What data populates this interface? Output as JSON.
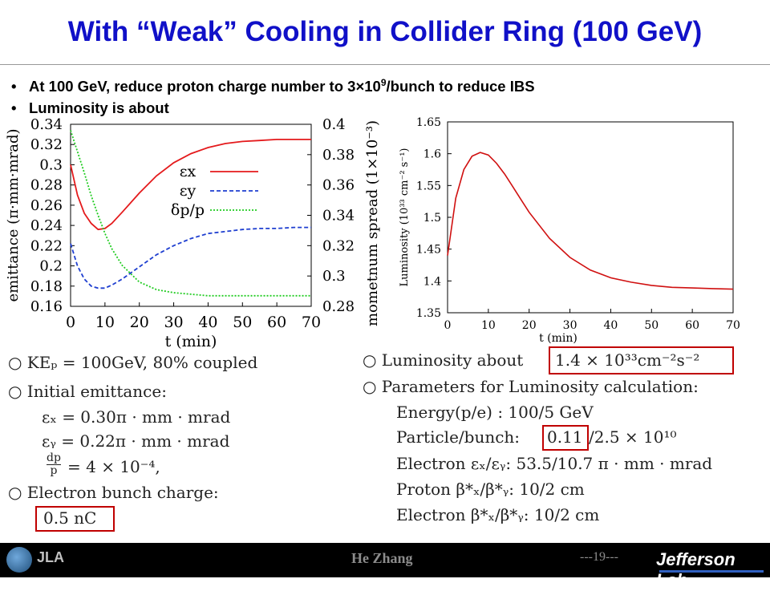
{
  "slide": {
    "title": "With “Weak” Cooling in Collider Ring (100 GeV)",
    "bullets": [
      {
        "text_before": "At 100 GeV, reduce proton charge number to 3×10",
        "sup": "9",
        "text_after": "/bunch to reduce IBS"
      },
      {
        "text_before": "Luminosity is about",
        "sup": "",
        "text_after": ""
      }
    ]
  },
  "chart_data": [
    {
      "type": "line",
      "xlabel": "t (min)",
      "ylabel_left": "emittance (π·mm·mrad)",
      "ylabel_right": "mometnum spread (1×10⁻³)",
      "x_ticks": [
        "0",
        "10",
        "20",
        "30",
        "40",
        "50",
        "60",
        "70"
      ],
      "y_left_ticks": [
        "0.34",
        "0.32",
        "0.3",
        "0.28",
        "0.26",
        "0.24",
        "0.22",
        "0.2",
        "0.18",
        "0.16"
      ],
      "y_right_ticks": [
        "0.4",
        "0.38",
        "0.36",
        "0.34",
        "0.32",
        "0.3",
        "0.28"
      ],
      "xlim": [
        0,
        70
      ],
      "ylim_left": [
        0.16,
        0.34
      ],
      "ylim_right": [
        0.28,
        0.4
      ],
      "legend": {
        "placement": "upper-right",
        "labels": [
          "εx",
          "εy",
          "δp/p"
        ]
      },
      "series": [
        {
          "name": "εx",
          "axis": "left",
          "color": "#e41a1c",
          "style": "solid",
          "x": [
            0,
            2,
            4,
            6,
            8,
            10,
            12,
            15,
            20,
            25,
            30,
            35,
            40,
            45,
            50,
            55,
            60,
            65,
            70
          ],
          "y": [
            0.3,
            0.27,
            0.252,
            0.242,
            0.236,
            0.237,
            0.242,
            0.253,
            0.272,
            0.289,
            0.302,
            0.311,
            0.317,
            0.321,
            0.323,
            0.324,
            0.325,
            0.325,
            0.325
          ]
        },
        {
          "name": "εy",
          "axis": "left",
          "color": "#1f3fd0",
          "style": "dashed",
          "x": [
            0,
            2,
            4,
            6,
            8,
            10,
            12,
            15,
            20,
            25,
            30,
            35,
            40,
            45,
            50,
            55,
            60,
            65,
            70
          ],
          "y": [
            0.222,
            0.2,
            0.187,
            0.18,
            0.178,
            0.178,
            0.181,
            0.187,
            0.199,
            0.211,
            0.22,
            0.227,
            0.232,
            0.234,
            0.236,
            0.237,
            0.237,
            0.238,
            0.238
          ]
        },
        {
          "name": "δp/p",
          "axis": "right",
          "color": "#22cc22",
          "style": "dotted",
          "x": [
            0,
            2,
            4,
            6,
            8,
            10,
            12,
            15,
            20,
            25,
            30,
            35,
            40,
            45,
            50,
            55,
            60,
            65,
            70
          ],
          "y": [
            0.396,
            0.382,
            0.368,
            0.353,
            0.34,
            0.328,
            0.318,
            0.307,
            0.296,
            0.291,
            0.289,
            0.288,
            0.287,
            0.287,
            0.287,
            0.287,
            0.287,
            0.287,
            0.287
          ]
        }
      ]
    },
    {
      "type": "line",
      "xlabel": "t (min)",
      "ylabel": "Luminosity (10³³ cm⁻² s⁻¹)",
      "x_ticks": [
        "0",
        "10",
        "20",
        "30",
        "40",
        "50",
        "60",
        "70"
      ],
      "y_ticks": [
        "1.65",
        "1.6",
        "1.55",
        "1.5",
        "1.45",
        "1.4",
        "1.35"
      ],
      "xlim": [
        0,
        70
      ],
      "ylim": [
        1.35,
        1.65
      ],
      "series": [
        {
          "color": "#d01010",
          "style": "solid",
          "x": [
            0,
            2,
            4,
            6,
            8,
            10,
            12,
            14,
            16,
            18,
            20,
            25,
            30,
            35,
            40,
            45,
            50,
            55,
            60,
            65,
            70
          ],
          "y": [
            1.44,
            1.53,
            1.575,
            1.596,
            1.602,
            1.598,
            1.585,
            1.568,
            1.548,
            1.528,
            1.508,
            1.467,
            1.437,
            1.417,
            1.405,
            1.398,
            1.393,
            1.39,
            1.389,
            1.388,
            1.387
          ]
        }
      ]
    }
  ],
  "equations_left": {
    "line1": "○ KEₚ = 100GeV,  80% coupled",
    "line2": "○ Initial emittance:",
    "line3": "εₓ = 0.30π · mm · mrad",
    "line4": "εᵧ = 0.22π · mm · mrad",
    "line5_num": "dp",
    "line5_den": "p",
    "line5_rest": "= 4 × 10⁻⁴,",
    "line6": "○ Electron bunch charge:",
    "line7": "0.5 nC"
  },
  "equations_right": {
    "line1_pre": "○ Luminosity about",
    "line1_box": "1.4 × 10³³cm⁻²s⁻²",
    "line2": "○ Parameters for Luminosity calculation:",
    "line3": "Energy(p/e) : 100/5 GeV",
    "line4_pre": "Particle/bunch:",
    "line4_box": "0.11",
    "line4_post": "/2.5 × 10¹⁰",
    "line5": "Electron εₓ/εᵧ:  53.5/10.7 π · mm · mrad",
    "line6": "Proton  β*ₓ/β*ᵧ:  10/2 cm",
    "line7": "Electron β*ₓ/β*ᵧ:  10/2 cm"
  },
  "footer": {
    "author": "He Zhang",
    "page": "---19---",
    "logo_text": "JLA",
    "lab_name": "Jefferson Lab"
  },
  "colors": {
    "title": "#1010c8",
    "box": "#c00000",
    "footer_bg": "#000000"
  }
}
